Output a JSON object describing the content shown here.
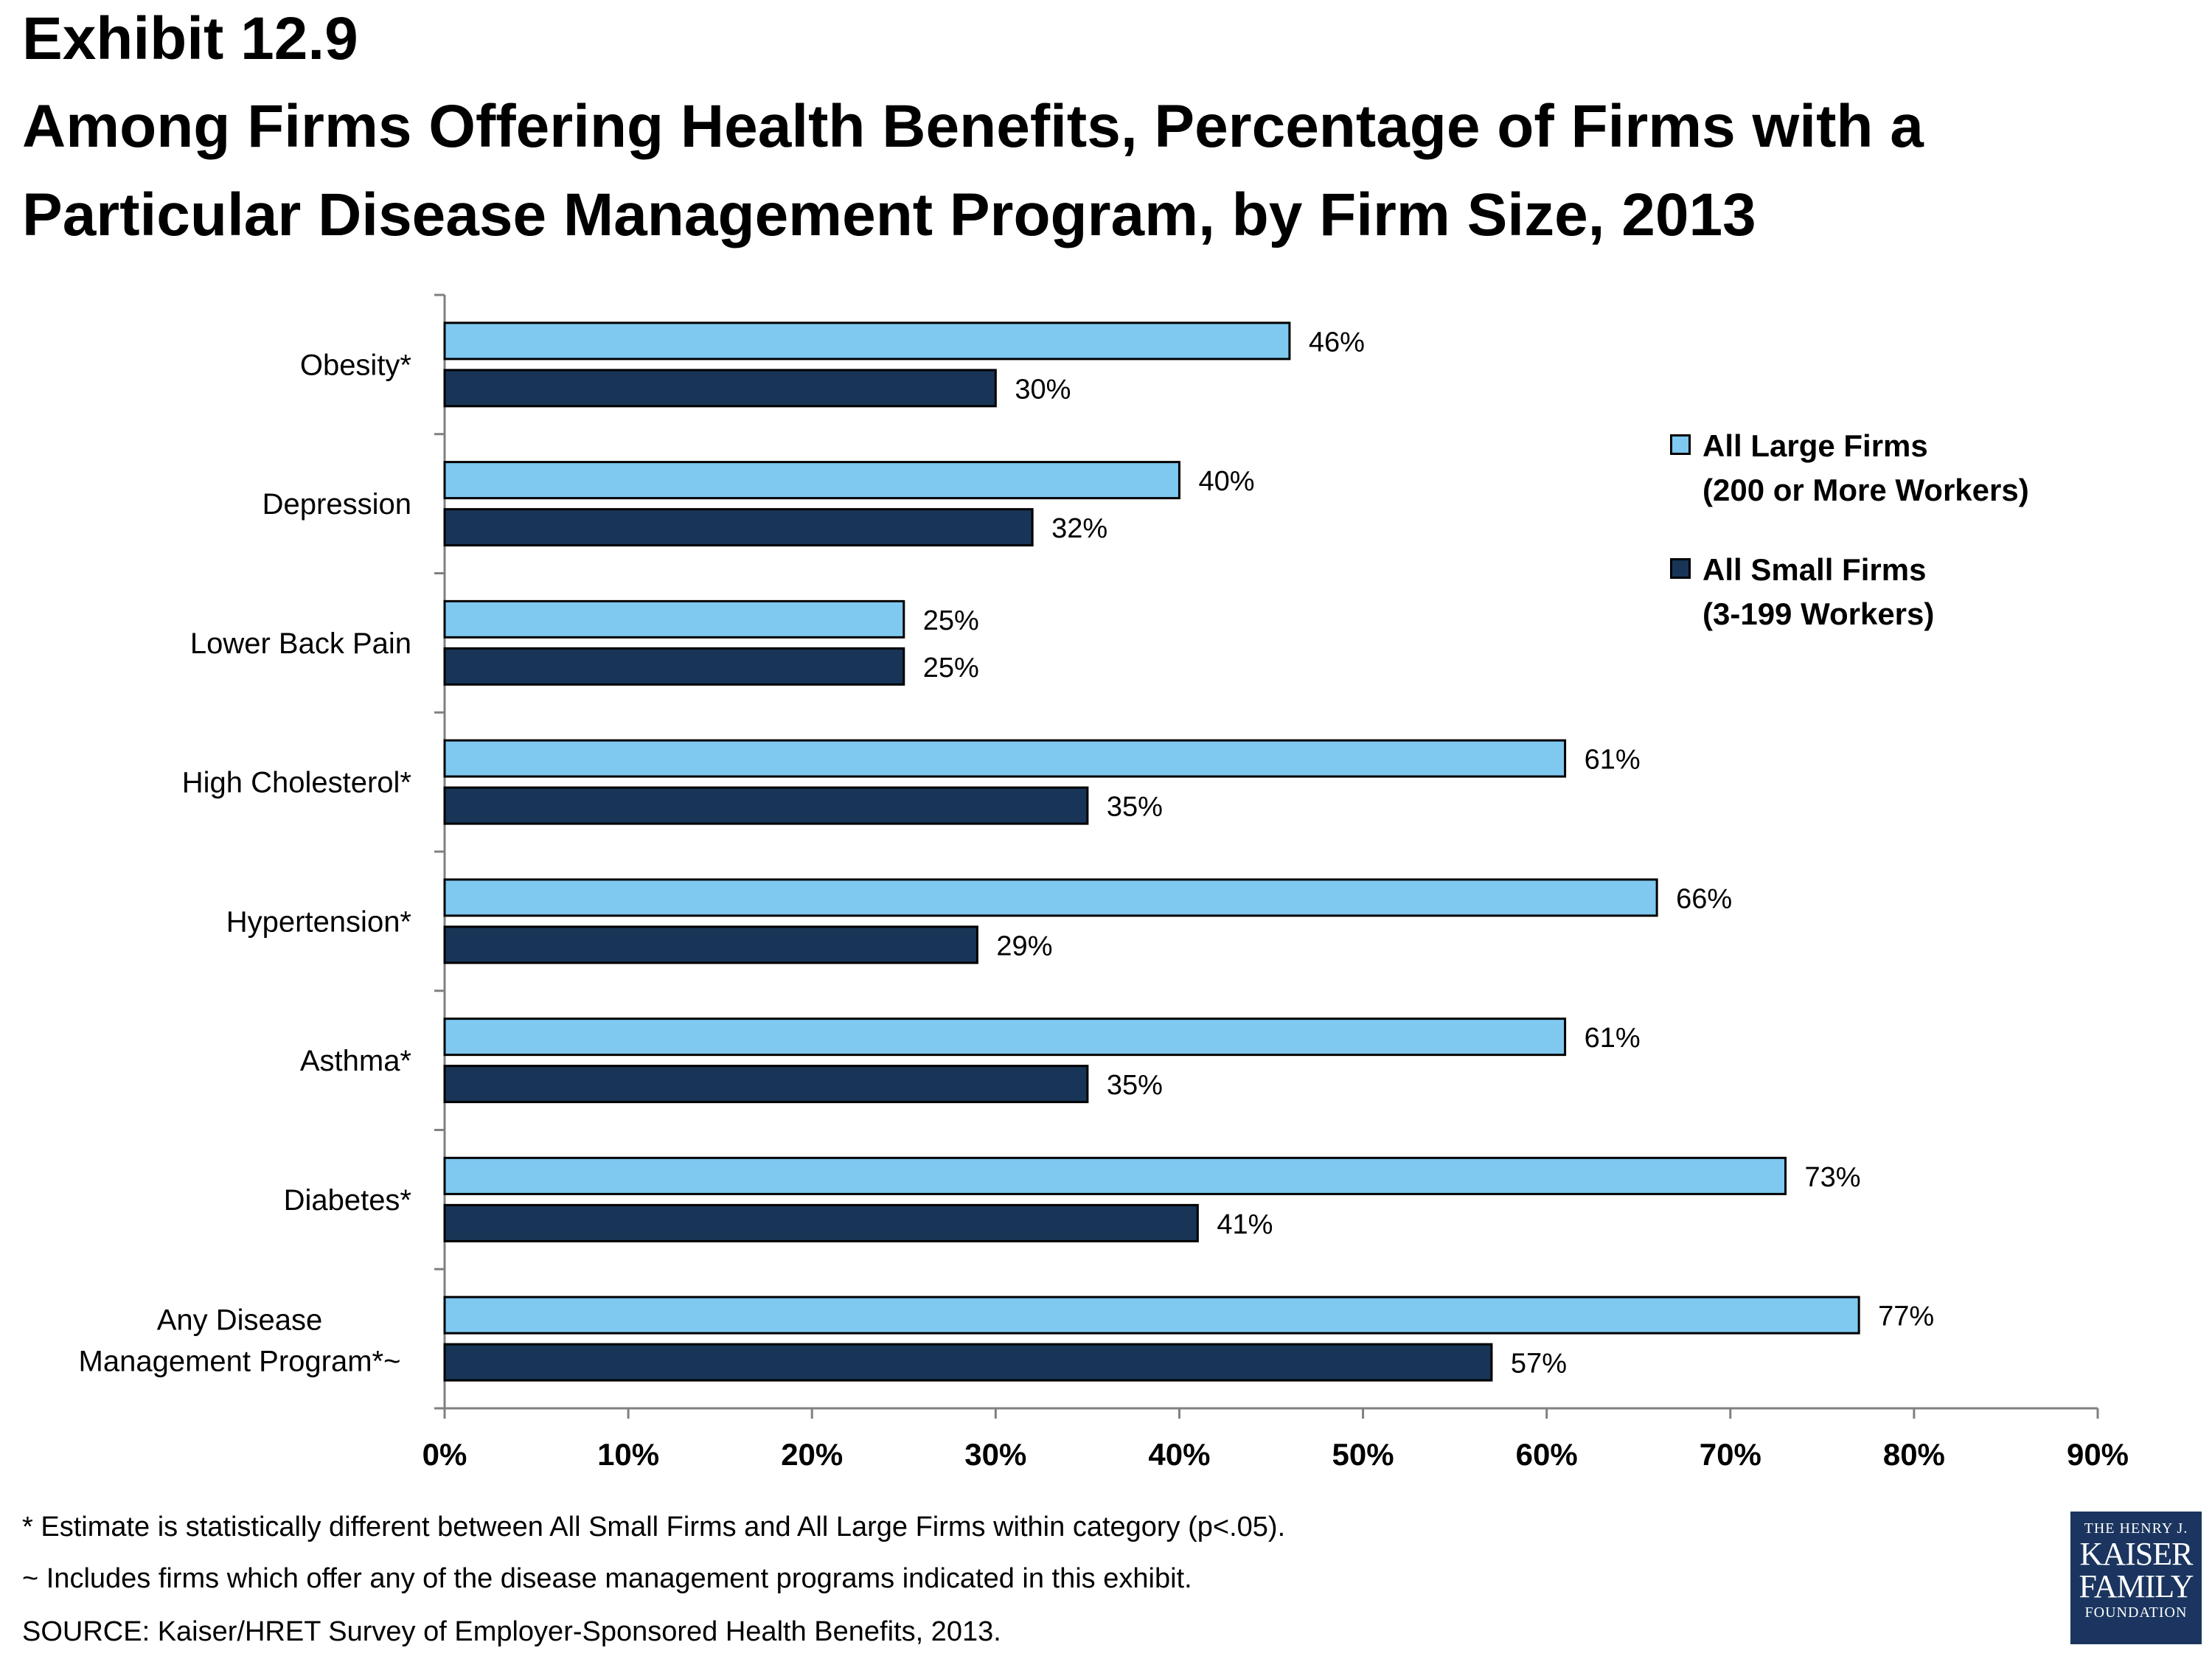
{
  "header": {
    "exhibit": "Exhibit 12.9",
    "title_line1": "Among Firms Offering Health Benefits, Percentage of Firms with a",
    "title_line2": "Particular Disease Management Program, by Firm Size, 2013"
  },
  "colors": {
    "large": "#7fc8f0",
    "small": "#183557",
    "axis": "#808080",
    "logo_bg": "#1b3560"
  },
  "chart_data": {
    "type": "bar",
    "orientation": "horizontal",
    "categories": [
      "Obesity*",
      "Depression",
      "Lower Back Pain",
      "High Cholesterol*",
      "Hypertension*",
      "Asthma*",
      "Diabetes*",
      "Any Disease Management Program*~"
    ],
    "category_lines": [
      [
        "Obesity*"
      ],
      [
        "Depression"
      ],
      [
        "Lower Back Pain"
      ],
      [
        "High Cholesterol*"
      ],
      [
        "Hypertension*"
      ],
      [
        "Asthma*"
      ],
      [
        "Diabetes*"
      ],
      [
        "Any Disease",
        "Management Program*~"
      ]
    ],
    "series": [
      {
        "name": "All Large Firms (200 or More Workers)",
        "values": [
          46,
          40,
          25,
          61,
          66,
          61,
          73,
          77
        ],
        "labels": [
          "46%",
          "40%",
          "25%",
          "61%",
          "66%",
          "61%",
          "73%",
          "77%"
        ]
      },
      {
        "name": "All Small Firms (3-199 Workers)",
        "values": [
          30,
          32,
          25,
          35,
          29,
          35,
          41,
          57
        ],
        "labels": [
          "30%",
          "32%",
          "25%",
          "35%",
          "29%",
          "35%",
          "41%",
          "57%"
        ]
      }
    ],
    "xlim": [
      0,
      90
    ],
    "xticks": [
      0,
      10,
      20,
      30,
      40,
      50,
      60,
      70,
      80,
      90
    ],
    "xtick_labels": [
      "0%",
      "10%",
      "20%",
      "30%",
      "40%",
      "50%",
      "60%",
      "70%",
      "80%",
      "90%"
    ],
    "grid": false,
    "legend_position": "top-right"
  },
  "legend": [
    {
      "line1": "All Large Firms",
      "line2": "(200 or More Workers)"
    },
    {
      "line1": "All Small Firms",
      "line2": "(3-199 Workers)"
    }
  ],
  "footnotes": {
    "note1": "* Estimate is statistically different between All Small Firms and All Large Firms within category (p<.05).",
    "note2": "~ Includes firms which offer any of the disease management programs indicated in this exhibit.",
    "source": "SOURCE: Kaiser/HRET Survey of Employer-Sponsored Health Benefits, 2013."
  },
  "logo": {
    "line1": "THE HENRY J.",
    "line2": "KAISER",
    "line3": "FAMILY",
    "line4": "FOUNDATION"
  }
}
